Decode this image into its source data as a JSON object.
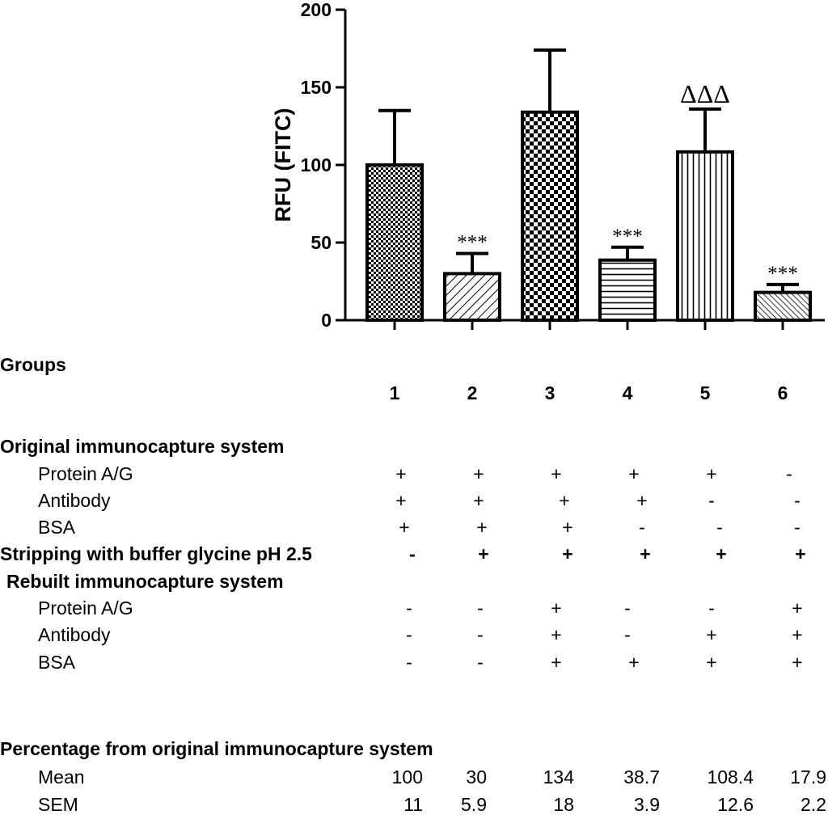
{
  "chart_data": {
    "type": "bar",
    "ylabel": "RFU (FITC)",
    "ylim": [
      0,
      200
    ],
    "yticks": [
      0,
      50,
      100,
      150,
      200
    ],
    "categories": [
      "1",
      "2",
      "3",
      "4",
      "5",
      "6"
    ],
    "values": [
      100,
      30,
      134,
      38.7,
      108.4,
      17.9
    ],
    "error_bar_top": [
      135,
      43,
      174,
      47,
      136,
      23
    ],
    "patterns": [
      "fine-checker",
      "diagonal-hatch",
      "coarse-checker",
      "horizontal-lines",
      "vertical-lines",
      "dense-diagonal-hatch"
    ],
    "annotations": [
      "",
      "***",
      "",
      "***",
      "ΔΔΔ",
      "***"
    ],
    "grid": false
  },
  "table": {
    "groups_label": "Groups",
    "group_numbers": [
      "1",
      "2",
      "3",
      "4",
      "5",
      "6"
    ],
    "original_title": "Original immunocapture system",
    "original_rows": [
      {
        "label": "Protein A/G",
        "values": [
          "+",
          "+",
          "+",
          "+",
          "+",
          "-"
        ]
      },
      {
        "label": "Antibody",
        "values": [
          "+",
          "+",
          "+",
          "+",
          "-",
          "-"
        ]
      },
      {
        "label": "BSA",
        "values": [
          "+",
          "+",
          "+",
          "-",
          "-",
          "-"
        ]
      }
    ],
    "stripping": {
      "label": "Stripping with buffer glycine pH 2.5",
      "values": [
        "-",
        "+",
        "+",
        "+",
        "+",
        "+"
      ]
    },
    "rebuilt_title": "Rebuilt immunocapture system",
    "rebuilt_rows": [
      {
        "label": "Protein A/G",
        "values": [
          "-",
          "-",
          "+",
          "-",
          "-",
          "+"
        ]
      },
      {
        "label": "Antibody",
        "values": [
          "-",
          "-",
          "+",
          "-",
          "+",
          "+"
        ]
      },
      {
        "label": "BSA",
        "values": [
          "-",
          "-",
          "+",
          "+",
          "+",
          "+"
        ]
      }
    ],
    "percentage_title": "Percentage from original immunocapture system",
    "mean": {
      "label": "Mean",
      "values": [
        "100",
        "30",
        "134",
        "38.7",
        "108.4",
        "17.9"
      ]
    },
    "sem": {
      "label": "SEM",
      "values": [
        "11",
        "5.9",
        "18",
        "3.9",
        "12.6",
        "2.2"
      ]
    }
  }
}
